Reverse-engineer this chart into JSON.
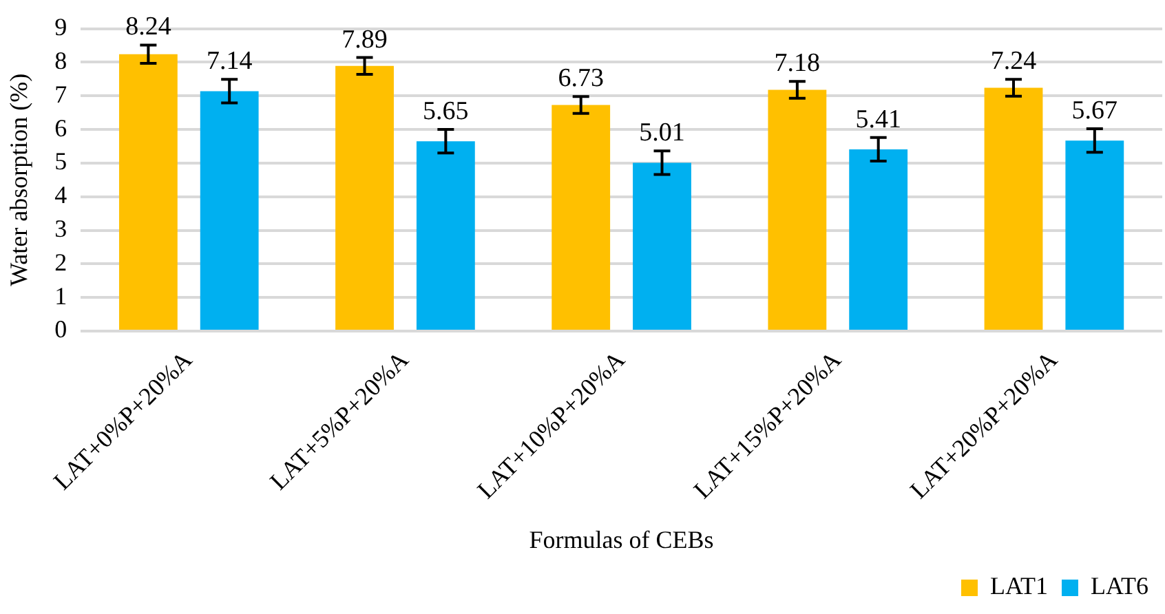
{
  "chart_data": {
    "type": "bar",
    "xlabel": "Formulas of CEBs",
    "ylabel": "Water absorption (%)",
    "categories": [
      "LAT+0%P+20%A",
      "LAT+5%P+20%A",
      "LAT+10%P+20%A",
      "LAT+15%P+20%A",
      "LAT+20%P+20%A"
    ],
    "series": [
      {
        "name": "LAT1",
        "color": "#ffc000",
        "values": [
          8.24,
          7.89,
          6.73,
          7.18,
          7.24
        ],
        "errors": [
          0.27,
          0.25,
          0.25,
          0.25,
          0.25
        ]
      },
      {
        "name": "LAT6",
        "color": "#00b0f0",
        "values": [
          7.14,
          5.65,
          5.01,
          5.41,
          5.67
        ],
        "errors": [
          0.35,
          0.35,
          0.35,
          0.35,
          0.35
        ]
      }
    ],
    "ylim": [
      0,
      9
    ],
    "yticks": [
      0,
      1,
      2,
      3,
      4,
      5,
      6,
      7,
      8,
      9
    ],
    "grid": "y",
    "legend": "bottom right",
    "data_labels": true
  }
}
